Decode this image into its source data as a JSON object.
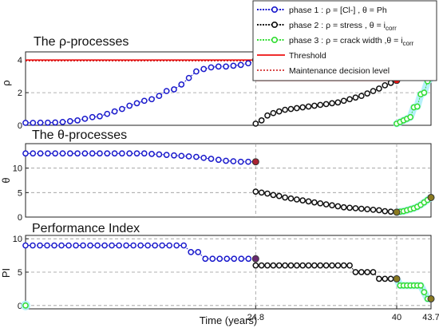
{
  "chart_data": [
    {
      "type": "line",
      "title": "The ρ-processes",
      "ylabel": "ρ",
      "xlim": [
        0,
        43.7
      ],
      "ylim": [
        0,
        4.5
      ],
      "yticks": [
        "0",
        "2",
        "4"
      ],
      "ytick_values": [
        0,
        2,
        4
      ],
      "grid": "dashed",
      "legend_position": "top-right",
      "legend": [
        {
          "key": "phase1",
          "label": "phase 1 : ρ = [Cl-] , θ = Ph"
        },
        {
          "key": "phase2",
          "label": "phase 2 : ρ = stress , θ = i",
          "sub": "corr"
        },
        {
          "key": "phase3",
          "label": "phase 3 : ρ = crack width ,θ = i",
          "sub": "corr"
        },
        {
          "key": "threshold",
          "label": "Threshold"
        },
        {
          "key": "maintenance",
          "label": "Maintenance decision level"
        }
      ],
      "series": [
        {
          "key": "phase1",
          "x_start": 0,
          "x_end": 24.8,
          "values": [
            0.15,
            0.15,
            0.16,
            0.16,
            0.17,
            0.2,
            0.25,
            0.3,
            0.4,
            0.5,
            0.55,
            0.7,
            0.85,
            1.0,
            1.2,
            1.35,
            1.5,
            1.6,
            1.8,
            2.1,
            2.2,
            2.5,
            2.9,
            3.3,
            3.45,
            3.55,
            3.6,
            3.6,
            3.65,
            3.7,
            3.8,
            3.95
          ]
        },
        {
          "key": "phase2",
          "x_start": 24.8,
          "x_end": 40,
          "values": [
            0.1,
            0.3,
            0.6,
            0.75,
            0.85,
            0.95,
            1.0,
            1.05,
            1.1,
            1.15,
            1.2,
            1.25,
            1.3,
            1.35,
            1.4,
            1.5,
            1.6,
            1.7,
            1.8,
            1.95,
            2.1,
            2.25,
            2.45,
            2.6,
            2.75
          ]
        },
        {
          "key": "phase3",
          "x_start": 40,
          "x_end": 43.7,
          "values": [
            0.1,
            0.2,
            0.3,
            0.4,
            0.5,
            1.1,
            1.15,
            1.9,
            2.0,
            2.7,
            2.9
          ]
        }
      ],
      "threshold": [
        {
          "x_start": 0,
          "x_end": 24.8,
          "y": 4.0
        },
        {
          "x_start": 24.8,
          "x_end": 40,
          "y": 2.75
        },
        {
          "x_start": 40,
          "x_end": 43.7,
          "y": 3.0
        }
      ],
      "maintenance": [
        {
          "x_start": 0,
          "x_end": 24.8,
          "y": 3.95
        }
      ],
      "transition_points": [
        {
          "x": 24.8,
          "y": 4.0
        },
        {
          "x": 40,
          "y": 2.75
        },
        {
          "x": 43.7,
          "y": 2.95
        }
      ]
    },
    {
      "type": "line",
      "title": "The θ-processes",
      "ylabel": "θ",
      "xlim": [
        0,
        43.7
      ],
      "ylim": [
        0,
        15
      ],
      "yticks": [
        "0",
        "5",
        "10"
      ],
      "ytick_values": [
        0,
        5,
        10
      ],
      "grid": "dashed",
      "series": [
        {
          "key": "phase1",
          "x_start": 0,
          "x_end": 24.8,
          "values": [
            13,
            13,
            13,
            13,
            13,
            13,
            13,
            13,
            13,
            13,
            13,
            13,
            13,
            13,
            13,
            13,
            13,
            12.9,
            12.8,
            12.7,
            12.6,
            12.5,
            12.4,
            12.3,
            12.1,
            11.9,
            11.7,
            11.5,
            11.4,
            11.3,
            11.3,
            11.3
          ]
        },
        {
          "key": "phase2",
          "x_start": 24.8,
          "x_end": 40,
          "values": [
            5.2,
            5.0,
            4.8,
            4.5,
            4.3,
            4.0,
            3.8,
            3.6,
            3.4,
            3.2,
            3.0,
            2.8,
            2.6,
            2.4,
            2.2,
            2.0,
            1.9,
            1.8,
            1.7,
            1.6,
            1.5,
            1.4,
            1.2,
            1.1,
            1.0
          ]
        },
        {
          "key": "phase3",
          "x_start": 40,
          "x_end": 43.7,
          "values": [
            1.0,
            1.1,
            1.2,
            1.4,
            1.6,
            1.8,
            2.1,
            2.5,
            3.0,
            3.5,
            4.0
          ]
        }
      ],
      "transition_points": [
        {
          "x": 24.8,
          "y": 11.3
        },
        {
          "x": 40,
          "y": 1.0
        },
        {
          "x": 43.7,
          "y": 4.0
        }
      ]
    },
    {
      "type": "line",
      "title": "Performance Index",
      "ylabel": "PI",
      "xlabel": "Time (years)",
      "xlim": [
        0,
        43.7
      ],
      "ylim": [
        -0.5,
        10.5
      ],
      "yticks": [
        "0",
        "5",
        "10"
      ],
      "ytick_values": [
        0,
        5,
        10
      ],
      "xticks": [
        "24.8",
        "40",
        "43.7"
      ],
      "xtick_values": [
        24.8,
        40,
        43.7
      ],
      "grid": "dashed",
      "series": [
        {
          "key": "phase1",
          "x_start": 0,
          "x_end": 24.8,
          "values": [
            9,
            9,
            9,
            9,
            9,
            9,
            9,
            9,
            9,
            9,
            9,
            9,
            9,
            9,
            9,
            9,
            9,
            9,
            9,
            9,
            9,
            9,
            9,
            8,
            8,
            7,
            7,
            7,
            7,
            7,
            7,
            7,
            7
          ]
        },
        {
          "key": "phase2",
          "x_start": 24.8,
          "x_end": 40,
          "values": [
            6,
            6,
            6,
            6,
            6,
            6,
            6,
            6,
            6,
            6,
            6,
            6,
            6,
            6,
            6,
            6,
            6,
            5,
            5,
            5,
            5,
            4,
            4,
            4,
            4
          ]
        },
        {
          "key": "phase3",
          "x_start": 40,
          "x_end": 43.7,
          "values": [
            4,
            3,
            3,
            3,
            3,
            3,
            3,
            3,
            2,
            1,
            1
          ]
        }
      ],
      "extra_points": [
        {
          "key": "phase3",
          "x": 0,
          "y": 0
        }
      ],
      "transition_points": [
        {
          "x": 24.8,
          "y": 7
        },
        {
          "x": 40,
          "y": 4
        },
        {
          "x": 43.7,
          "y": 1
        }
      ]
    }
  ],
  "colors": {
    "phase1": "#1a1acc",
    "phase2": "#111111",
    "phase3": "#33dd33",
    "threshold": "#ee1111",
    "maintenance": "#cc1111",
    "grid": "#999999",
    "phase3_glow": "#aeeefa"
  }
}
